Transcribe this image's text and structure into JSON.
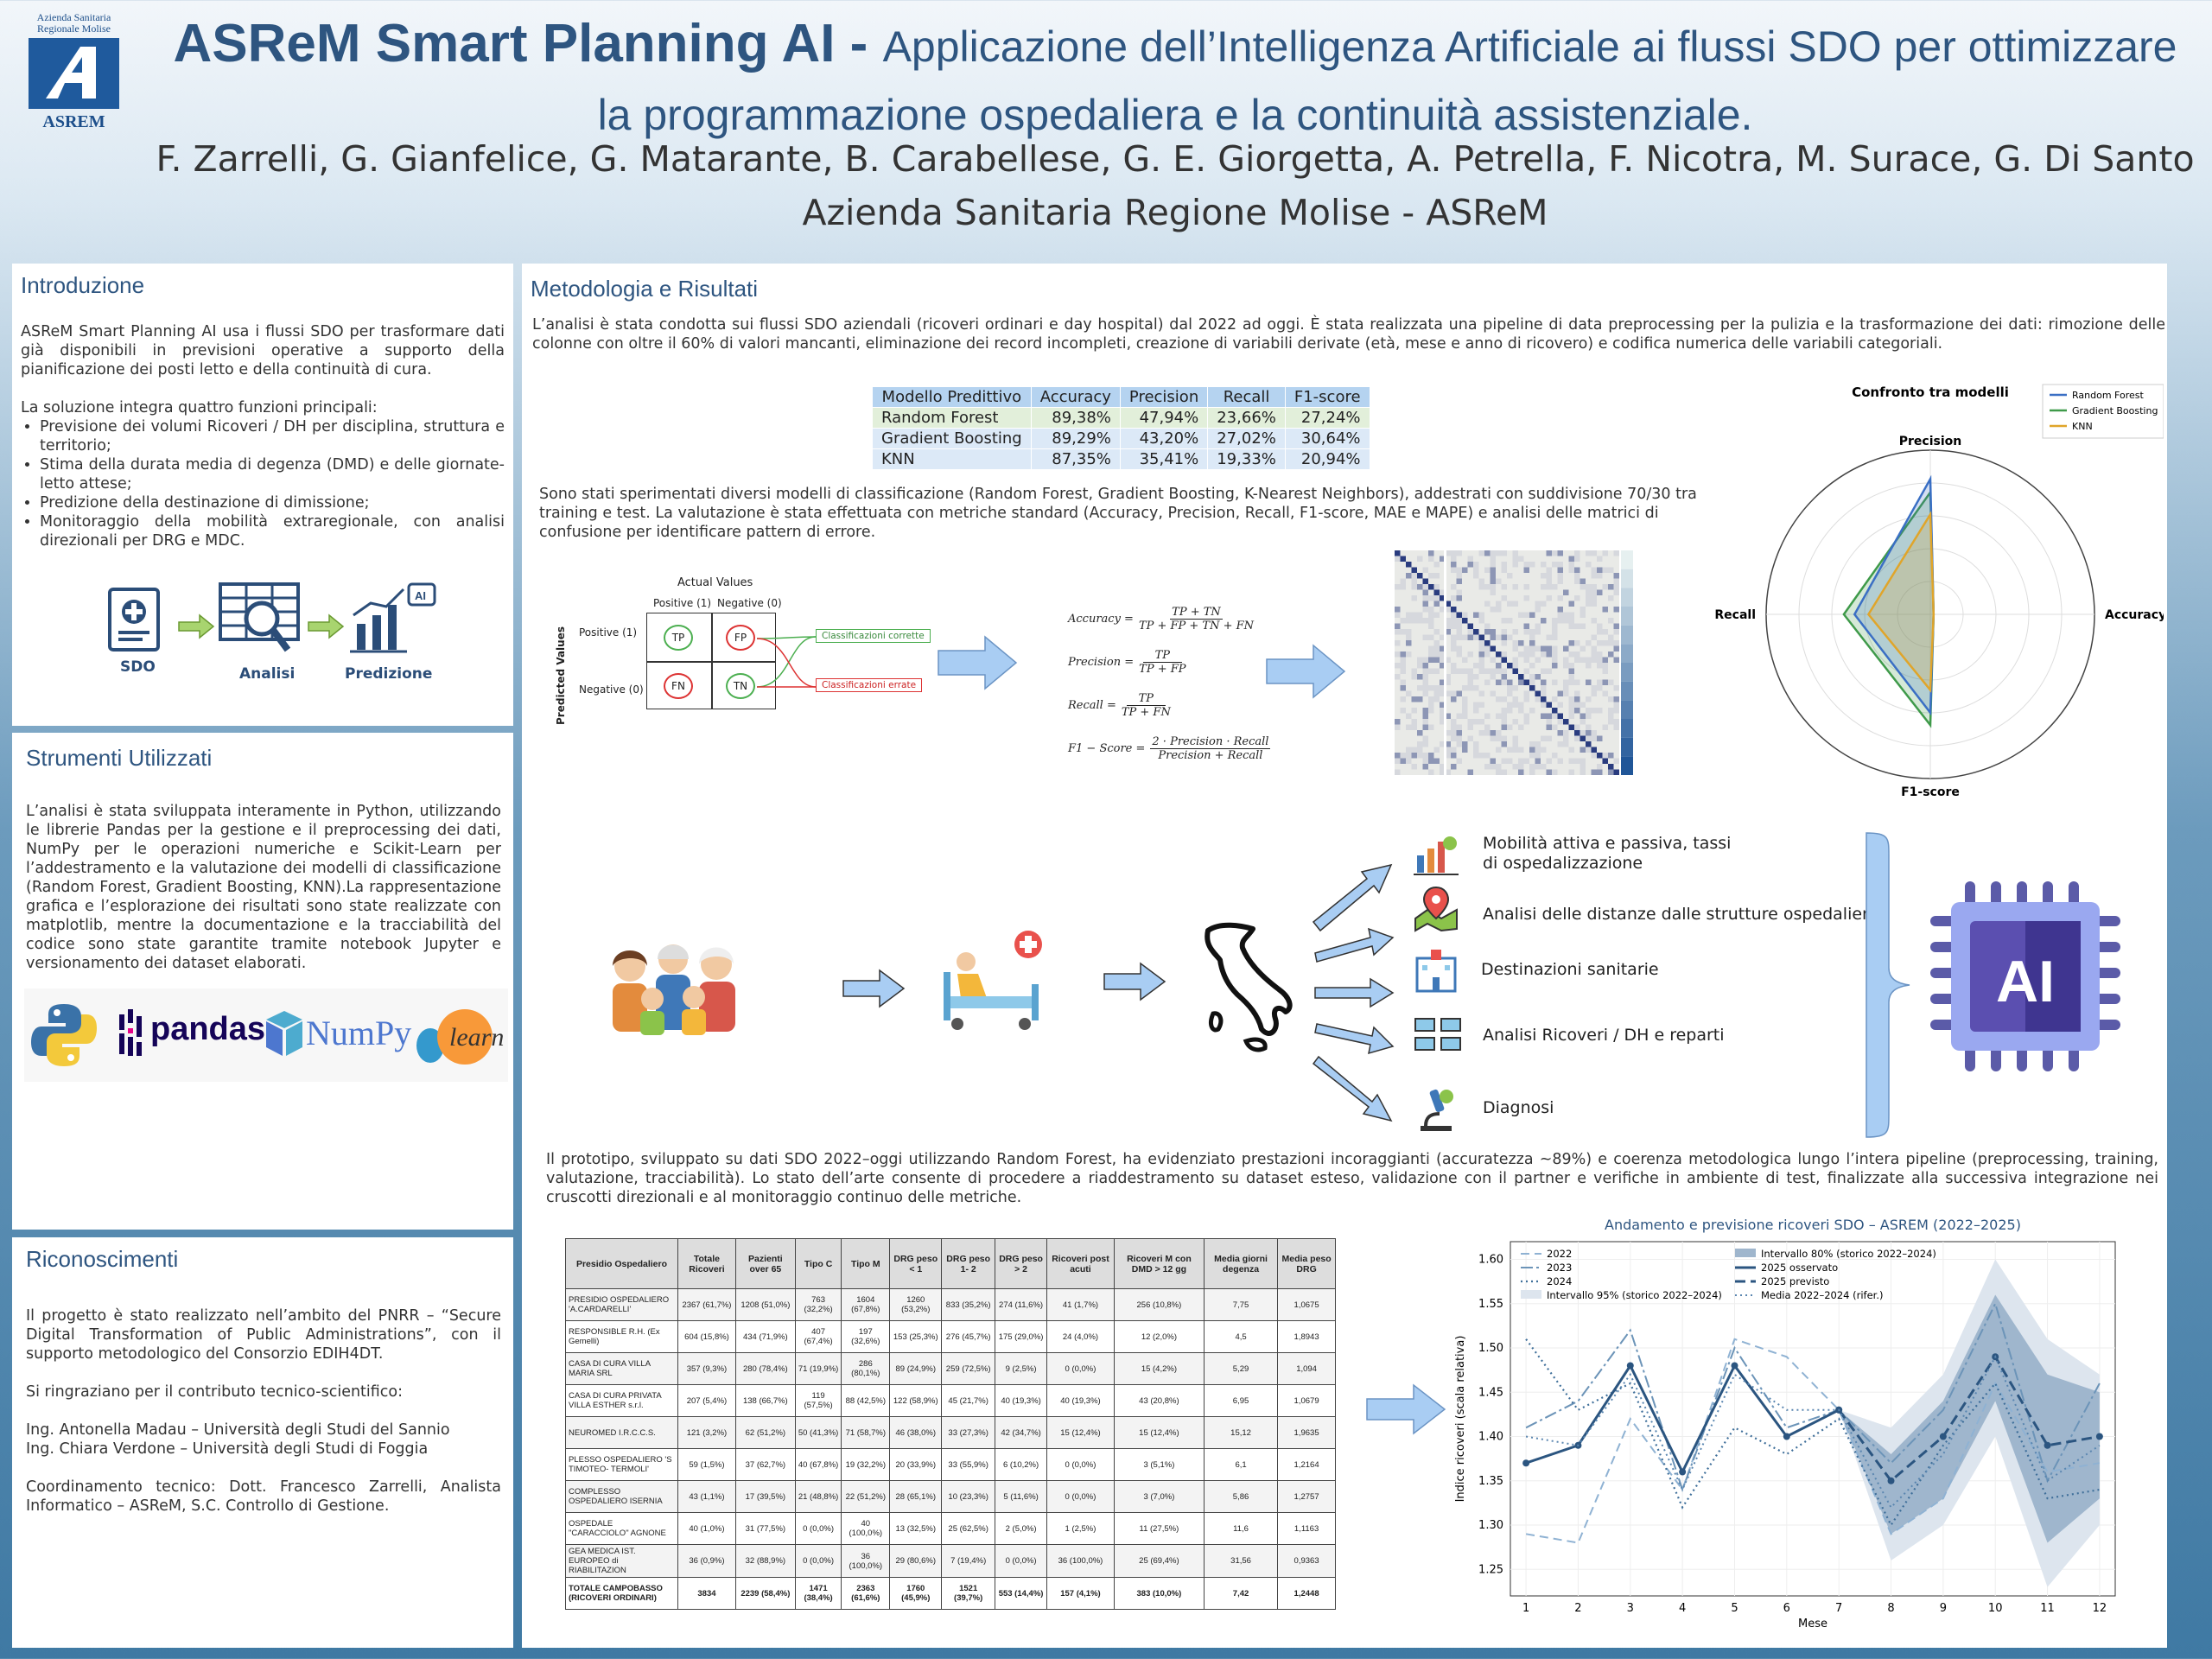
{
  "header": {
    "logo_text_top": "Azienda Sanitaria Regionale Molise",
    "logo_text_bottom": "ASREM",
    "title_bold": "ASReM Smart Planning AI",
    "title_sep": " - ",
    "title_rest": "Applicazione dell’Intelligenza Artificiale ai flussi SDO per ottimizzare la programmazione ospedaliera e la continuità assistenziale.",
    "authors": "F. Zarrelli, G. Gianfelice, G. Matarante, B. Carabellese, G. E. Giorgetta, A. Petrella, F. Nicotra, M. Surace, G. Di Santo",
    "affiliation": "Azienda Sanitaria Regione Molise - ASReM"
  },
  "intro": {
    "heading": "Introduzione",
    "p1": "ASReM Smart Planning AI usa i flussi SDO per trasformare dati già disponibili in previsioni operative a supporto della pianificazione dei posti letto e della continuità di cura.",
    "p2": "La soluzione integra quattro funzioni principali:",
    "bullets": [
      "Previsione dei volumi Ricoveri / DH per disciplina, struttura e territorio;",
      "Stima della durata media di degenza (DMD) e delle giornate-letto attese;",
      "Predizione della destinazione di dimissione;",
      "Monitoraggio della mobilità extraregionale, con analisi direzionali per DRG e MDC."
    ],
    "flow": [
      "SDO",
      "Analisi",
      "Predizione"
    ]
  },
  "tools": {
    "heading": "Strumenti Utilizzati",
    "p": "L’analisi è stata sviluppata interamente in Python, utilizzando le librerie Pandas per la gestione e il preprocessing dei dati, NumPy per le operazioni numeriche e Scikit-Learn per l’addestramento e la valutazione dei modelli di classificazione (Random Forest, Gradient Boosting, KNN).La rappresentazione grafica e l’esplorazione dei risultati sono state realizzate con matplotlib, mentre la documentazione e la tracciabilità del codice sono state garantite tramite notebook Jupyter e versionamento dei dataset elaborati.",
    "logos": [
      "pandas",
      "NumPy",
      "learn"
    ]
  },
  "thanks": {
    "heading": "Riconoscimenti",
    "p1": "Il progetto è stato realizzato nell’ambito del PNRR – “Secure Digital Transformation of Public Administrations”, con il supporto metodologico del Consorzio EDIH4DT.",
    "p2": "Si ringraziano per il contributo tecnico-scientifico:",
    "p3": "Ing. Antonella Madau – Università degli Studi del Sannio",
    "p4": "Ing. Chiara Verdone – Università degli Studi di Foggia",
    "p5": "Coordinamento tecnico: Dott. Francesco Zarrelli, Analista Informatico – ASReM, S.C. Controllo di Gestione."
  },
  "methods": {
    "heading": "Metodologia e Risultati",
    "p1": "L’analisi è stata condotta sui flussi SDO aziendali (ricoveri ordinari e day hospital) dal 2022 ad oggi. È stata realizzata una pipeline di data preprocessing per la pulizia e la trasformazione dei dati: rimozione delle colonne con oltre il 60% di valori mancanti, eliminazione dei record incompleti, creazione di variabili derivate (età, mese e anno di ricovero) e codifica numerica delle variabili categoriali.",
    "p2": "Sono stati sperimentati diversi modelli di classificazione (Random Forest, Gradient Boosting, K-Nearest Neighbors), addestrati con suddivisione 70/30 tra training e test. La valutazione è stata effettuata con metriche standard (Accuracy, Precision, Recall, F1-score, MAE e MAPE) e analisi delle matrici di confusione per identificare pattern di errore.",
    "p3": "Il prototipo, sviluppato su dati SDO 2022–oggi utilizzando Random Forest, ha evidenziato prestazioni incoraggianti (accuratezza ~89%) e coerenza metodologica lungo l’intera pipeline (preprocessing, training, valutazione, tracciabilità). Lo stato dell’arte consente di procedere a riaddestramento su dataset esteso, validazione con il partner e verifiche in ambiente di test, finalizzate alla successiva integrazione nei cruscotti direzionali e al monitoraggio continuo delle metriche."
  },
  "model_table": {
    "headers": [
      "Modello Predittivo",
      "Accuracy",
      "Precision",
      "Recall",
      "F1-score"
    ],
    "rows": [
      [
        "Random Forest",
        "89,38%",
        "47,94%",
        "23,66%",
        "27,24%"
      ],
      [
        "Gradient Boosting",
        "89,29%",
        "43,20%",
        "27,02%",
        "30,64%"
      ],
      [
        "KNN",
        "87,35%",
        "35,41%",
        "19,33%",
        "20,94%"
      ]
    ],
    "row_colors": [
      "#e2efda",
      "#dce9f7",
      "#dce9f7"
    ]
  },
  "confusion": {
    "actual": "Actual Values",
    "predicted": "Predicted Values",
    "pos": "Positive (1)",
    "neg": "Negative (0)",
    "tp": "TP",
    "fp": "FP",
    "fn": "FN",
    "tn": "TN",
    "correct": "Classificazioni corrette",
    "wrong": "Classificazioni errate"
  },
  "formulas": {
    "acc_l": "Accuracy =",
    "acc_n": "TP + TN",
    "acc_d": "TP + FP + TN + FN",
    "prec_l": "Precision =",
    "prec_n": "TP",
    "prec_d": "TP + FP",
    "rec_l": "Recall =",
    "rec_n": "TP",
    "rec_d": "TP + FN",
    "f1_l": "F1 − Score =",
    "f1_n": "2 · Precision · Recall",
    "f1_d": "Precision + Recall"
  },
  "radar": {
    "title": "Confronto tra modelli",
    "axes": [
      "Precision",
      "Accuracy",
      "F1-score",
      "Recall"
    ],
    "legend": [
      "Random Forest",
      "Gradient Boosting",
      "KNN"
    ],
    "colors": [
      "#3a6fc4",
      "#3f9a4a",
      "#e0a52a"
    ]
  },
  "flow2": {
    "items": [
      "Mobilità attiva e passiva, tassi di ospedalizzazione",
      "Analisi delle distanze dalle strutture ospedaliere",
      "Destinazioni sanitarie",
      "Analisi Ricoveri / DH e reparti",
      "Diagnosi"
    ],
    "ai_label": "AI"
  },
  "hospital_table": {
    "headers": [
      "Presidio Ospedaliero",
      "Totale Ricoveri",
      "Pazienti over 65",
      "Tipo C",
      "Tipo M",
      "DRG peso < 1",
      "DRG peso 1- 2",
      "DRG peso > 2",
      "Ricoveri post acuti",
      "Ricoveri M con DMD > 12 gg",
      "Media giorni degenza",
      "Media peso DRG"
    ],
    "rows": [
      [
        "PRESIDIO OSPEDALIERO 'A.CARDARELLI'",
        "2367 (61,7%)",
        "1208 (51,0%)",
        "763 (32,2%)",
        "1604 (67,8%)",
        "1260 (53,2%)",
        "833 (35,2%)",
        "274 (11,6%)",
        "41 (1,7%)",
        "256 (10,8%)",
        "7,75",
        "1,0675"
      ],
      [
        "RESPONSIBLE R.H. (Ex Gemelli)",
        "604 (15,8%)",
        "434 (71,9%)",
        "407 (67,4%)",
        "197 (32,6%)",
        "153 (25,3%)",
        "276 (45,7%)",
        "175 (29,0%)",
        "24 (4,0%)",
        "12 (2,0%)",
        "4,5",
        "1,8943"
      ],
      [
        "CASA DI CURA VILLA MARIA SRL",
        "357 (9,3%)",
        "280 (78,4%)",
        "71 (19,9%)",
        "286 (80,1%)",
        "89 (24,9%)",
        "259 (72,5%)",
        "9 (2,5%)",
        "0 (0,0%)",
        "15 (4,2%)",
        "5,29",
        "1,094"
      ],
      [
        "CASA DI CURA PRIVATA VILLA ESTHER s.r.l.",
        "207 (5,4%)",
        "138 (66,7%)",
        "119 (57,5%)",
        "88 (42,5%)",
        "122 (58,9%)",
        "45 (21,7%)",
        "40 (19,3%)",
        "40 (19,3%)",
        "43 (20,8%)",
        "6,95",
        "1,0679"
      ],
      [
        "NEUROMED I.R.C.C.S.",
        "121 (3,2%)",
        "62 (51,2%)",
        "50 (41,3%)",
        "71 (58,7%)",
        "46 (38,0%)",
        "33 (27,3%)",
        "42 (34,7%)",
        "15 (12,4%)",
        "15 (12,4%)",
        "15,12",
        "1,9635"
      ],
      [
        "PLESSO OSPEDALIERO 'S TIMOTEO- TERMOLI'",
        "59 (1,5%)",
        "37 (62,7%)",
        "40 (67,8%)",
        "19 (32,2%)",
        "20 (33,9%)",
        "33 (55,9%)",
        "6 (10,2%)",
        "0 (0,0%)",
        "3 (5,1%)",
        "6,1",
        "1,2164"
      ],
      [
        "COMPLESSO OSPEDALIERO ISERNIA",
        "43 (1,1%)",
        "17 (39,5%)",
        "21 (48,8%)",
        "22 (51,2%)",
        "28 (65,1%)",
        "10 (23,3%)",
        "5 (11,6%)",
        "0 (0,0%)",
        "3 (7,0%)",
        "5,86",
        "1,2757"
      ],
      [
        "OSPEDALE \"CARACCIOLO\" AGNONE",
        "40 (1,0%)",
        "31 (77,5%)",
        "0 (0,0%)",
        "40 (100,0%)",
        "13 (32,5%)",
        "25 (62,5%)",
        "2 (5,0%)",
        "1 (2,5%)",
        "11 (27,5%)",
        "11,6",
        "1,1163"
      ],
      [
        "GEA MEDICA IST. EUROPEO di RIABILITAZION",
        "36 (0,9%)",
        "32 (88,9%)",
        "0 (0,0%)",
        "36 (100,0%)",
        "29 (80,6%)",
        "7 (19,4%)",
        "0 (0,0%)",
        "36 (100,0%)",
        "25 (69,4%)",
        "31,56",
        "0,9363"
      ],
      [
        "TOTALE CAMPOBASSO (RICOVERI ORDINARI)",
        "3834",
        "2239 (58,4%)",
        "1471 (38,4%)",
        "2363 (61,6%)",
        "1760 (45,9%)",
        "1521 (39,7%)",
        "553 (14,4%)",
        "157 (4,1%)",
        "383 (10,0%)",
        "7,42",
        "1,2448"
      ]
    ]
  },
  "chart_data": {
    "type": "line",
    "title": "Andamento e previsione ricoveri SDO – ASREM (2022–2025)",
    "xlabel": "Mese",
    "ylabel": "Indice ricoveri (scala relativa)",
    "x": [
      1,
      2,
      3,
      4,
      5,
      6,
      7,
      8,
      9,
      10,
      11,
      12
    ],
    "ylim": [
      1.22,
      1.62
    ],
    "yticks": [
      1.25,
      1.3,
      1.35,
      1.4,
      1.45,
      1.5,
      1.55,
      1.6
    ],
    "legend": [
      "2022",
      "2023",
      "2024",
      "Intervallo 95% (storico 2022–2024)",
      "Intervallo 80% (storico 2022–2024)",
      "2025 osservato",
      "2025 previsto",
      "Media 2022–2024 (rifer.)"
    ],
    "series": [
      {
        "name": "2022",
        "x": [
          1,
          2,
          3,
          4,
          5,
          6,
          7,
          8,
          9,
          10,
          11,
          12
        ],
        "values": [
          1.29,
          1.28,
          1.42,
          1.34,
          1.51,
          1.49,
          1.43,
          1.29,
          1.33,
          1.46,
          1.36,
          1.37
        ]
      },
      {
        "name": "2023",
        "x": [
          1,
          2,
          3,
          4,
          5,
          6,
          7,
          8,
          9,
          10,
          11,
          12
        ],
        "values": [
          1.41,
          1.44,
          1.52,
          1.34,
          1.5,
          1.41,
          1.43,
          1.37,
          1.43,
          1.55,
          1.35,
          1.46
        ]
      },
      {
        "name": "2024",
        "x": [
          1,
          2,
          3,
          4,
          5,
          6,
          7,
          8,
          9,
          10,
          11,
          12
        ],
        "values": [
          1.51,
          1.43,
          1.46,
          1.32,
          1.41,
          1.38,
          1.42,
          1.3,
          1.39,
          1.46,
          1.33,
          1.34
        ]
      },
      {
        "name": "2025 osservato",
        "x": [
          1,
          2,
          3,
          4,
          5,
          6,
          7
        ],
        "values": [
          1.37,
          1.39,
          1.48,
          1.36,
          1.48,
          1.4,
          1.43
        ]
      },
      {
        "name": "2025 previsto",
        "x": [
          7,
          8,
          9,
          10,
          11,
          12
        ],
        "values": [
          1.43,
          1.35,
          1.4,
          1.49,
          1.39,
          1.4
        ]
      },
      {
        "name": "Media 2022–2024 (rifer.)",
        "x": [
          1,
          2,
          3,
          4,
          5,
          6,
          7,
          8,
          9,
          10,
          11,
          12
        ],
        "values": [
          1.4,
          1.39,
          1.47,
          1.34,
          1.47,
          1.43,
          1.43,
          1.32,
          1.38,
          1.49,
          1.35,
          1.39
        ]
      }
    ],
    "band95": {
      "x": [
        7,
        8,
        9,
        10,
        11,
        12
      ],
      "low": [
        1.43,
        1.26,
        1.3,
        1.4,
        1.23,
        1.3
      ],
      "high": [
        1.43,
        1.41,
        1.47,
        1.6,
        1.51,
        1.47
      ]
    },
    "band80": {
      "x": [
        7,
        8,
        9,
        10,
        11,
        12
      ],
      "low": [
        1.43,
        1.29,
        1.33,
        1.44,
        1.28,
        1.33
      ],
      "high": [
        1.43,
        1.38,
        1.44,
        1.56,
        1.47,
        1.45
      ]
    }
  }
}
